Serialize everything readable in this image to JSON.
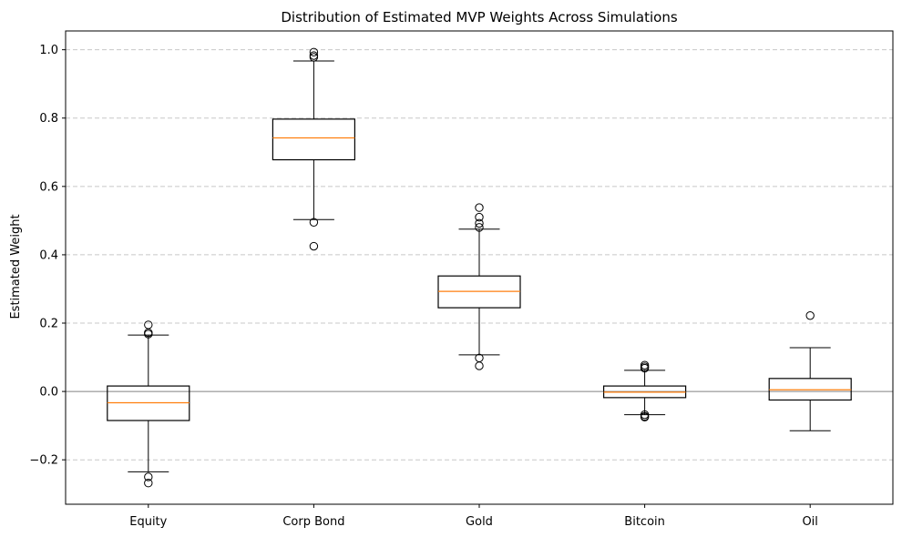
{
  "chart_data": {
    "type": "box",
    "title": "Distribution of Estimated MVP Weights Across Simulations",
    "xlabel": "",
    "ylabel": "Estimated Weight",
    "ylim": [
      -0.33,
      1.055
    ],
    "yticks": [
      -0.2,
      0.0,
      0.2,
      0.4,
      0.6,
      0.8,
      1.0
    ],
    "ytick_labels": [
      "−0.2",
      "0.0",
      "0.2",
      "0.4",
      "0.6",
      "0.8",
      "1.0"
    ],
    "grid": "y-dashed",
    "reference_line": 0.0,
    "categories": [
      "Equity",
      "Corp Bond",
      "Gold",
      "Bitcoin",
      "Oil"
    ],
    "boxes": [
      {
        "category": "Equity",
        "whisker_low": -0.235,
        "q1": -0.085,
        "median": -0.033,
        "q3": 0.016,
        "whisker_high": 0.165,
        "outliers": [
          0.195,
          0.172,
          0.168,
          -0.25,
          -0.268
        ]
      },
      {
        "category": "Corp Bond",
        "whisker_low": 0.503,
        "q1": 0.678,
        "median": 0.742,
        "q3": 0.797,
        "whisker_high": 0.967,
        "outliers": [
          0.993,
          0.983,
          0.978,
          0.495,
          0.425
        ]
      },
      {
        "category": "Gold",
        "whisker_low": 0.107,
        "q1": 0.245,
        "median": 0.293,
        "q3": 0.338,
        "whisker_high": 0.475,
        "outliers": [
          0.538,
          0.51,
          0.492,
          0.48,
          0.098,
          0.075
        ]
      },
      {
        "category": "Bitcoin",
        "whisker_low": -0.068,
        "q1": -0.018,
        "median": -0.002,
        "q3": 0.016,
        "whisker_high": 0.062,
        "outliers": [
          0.077,
          0.072,
          0.068,
          -0.068,
          -0.073,
          -0.075
        ]
      },
      {
        "category": "Oil",
        "whisker_low": -0.115,
        "q1": -0.025,
        "median": 0.005,
        "q3": 0.038,
        "whisker_high": 0.128,
        "outliers": [
          0.222
        ]
      }
    ],
    "colors": {
      "box": "#000000",
      "median": "#ff7f0e",
      "grid": "#c8c8c8",
      "zero_line": "#808080"
    }
  }
}
